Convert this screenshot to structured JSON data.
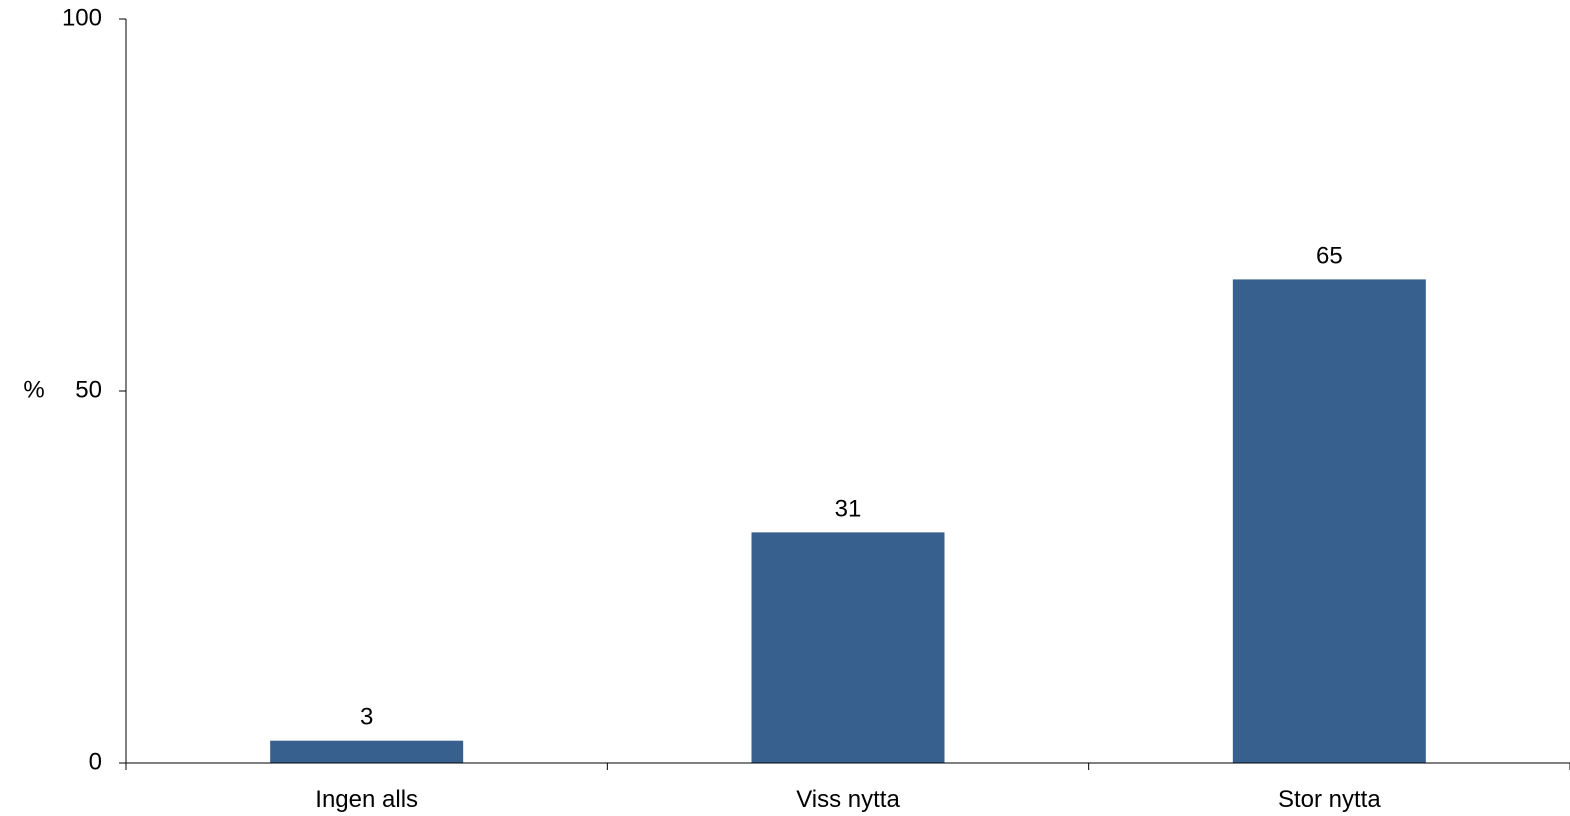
{
  "chart_data": {
    "type": "bar",
    "categories": [
      "Ingen alls",
      "Viss nytta",
      "Stor nytta"
    ],
    "values": [
      3,
      31,
      65
    ],
    "data_labels": [
      "3",
      "31",
      "65"
    ],
    "title": "",
    "xlabel": "",
    "ylabel": "%",
    "ylim": [
      0,
      100
    ],
    "yticks": [
      0,
      50,
      100
    ],
    "ytick_labels": [
      "0",
      "50",
      "100"
    ],
    "grid": false,
    "legend": "none",
    "bar_color": "#38608F"
  }
}
